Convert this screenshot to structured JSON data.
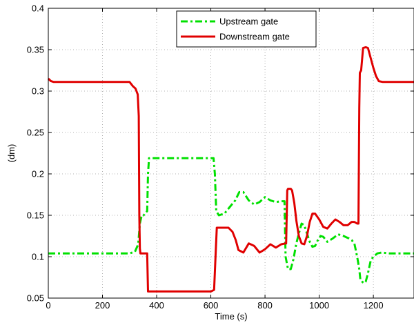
{
  "chart_data": {
    "type": "line",
    "xlabel": "Time (s)",
    "ylabel": "(dm)",
    "xlim": [
      0,
      1350
    ],
    "ylim": [
      0.05,
      0.4
    ],
    "xticks": [
      0,
      200,
      400,
      600,
      800,
      1000,
      1200
    ],
    "yticks": [
      0.05,
      0.1,
      0.15,
      0.2,
      0.25,
      0.3,
      0.35,
      0.4
    ],
    "xtick_labels": [
      "0",
      "200",
      "400",
      "600",
      "800",
      "1000",
      "1200"
    ],
    "ytick_labels": [
      "0.05",
      "0.1",
      "0.15",
      "0.2",
      "0.25",
      "0.3",
      "0.35",
      "0.4"
    ],
    "grid": true,
    "legend_position": "top-right",
    "series": [
      {
        "name": "Upstream gate",
        "color": "#00e000",
        "style": "dash-dot",
        "x": [
          0,
          10,
          20,
          40,
          100,
          200,
          300,
          320,
          332,
          338,
          345,
          352,
          355,
          365,
          368,
          372,
          380,
          450,
          550,
          610,
          615,
          620,
          630,
          650,
          670,
          690,
          705,
          720,
          740,
          760,
          780,
          800,
          820,
          840,
          860,
          872,
          876,
          880,
          885,
          895,
          905,
          915,
          925,
          935,
          945,
          955,
          965,
          975,
          985,
          995,
          1005,
          1015,
          1030,
          1050,
          1070,
          1090,
          1110,
          1120,
          1130,
          1140,
          1148,
          1152,
          1158,
          1165,
          1172,
          1180,
          1190,
          1200,
          1215,
          1230,
          1260,
          1300,
          1350
        ],
        "y": [
          0.104,
          0.104,
          0.104,
          0.104,
          0.104,
          0.104,
          0.104,
          0.106,
          0.115,
          0.14,
          0.15,
          0.15,
          0.152,
          0.155,
          0.2,
          0.219,
          0.219,
          0.219,
          0.219,
          0.219,
          0.2,
          0.155,
          0.15,
          0.152,
          0.16,
          0.168,
          0.178,
          0.178,
          0.168,
          0.163,
          0.166,
          0.172,
          0.168,
          0.166,
          0.167,
          0.167,
          0.1,
          0.093,
          0.085,
          0.085,
          0.097,
          0.115,
          0.128,
          0.14,
          0.138,
          0.128,
          0.118,
          0.112,
          0.113,
          0.12,
          0.125,
          0.124,
          0.118,
          0.122,
          0.127,
          0.125,
          0.122,
          0.12,
          0.116,
          0.1,
          0.085,
          0.072,
          0.07,
          0.068,
          0.07,
          0.08,
          0.095,
          0.1,
          0.104,
          0.105,
          0.104,
          0.104,
          0.104
        ]
      },
      {
        "name": "Downstream gate",
        "color": "#e00000",
        "style": "solid",
        "x": [
          0,
          10,
          20,
          40,
          60,
          100,
          200,
          300,
          312,
          322,
          330,
          334,
          336,
          338,
          340,
          345,
          360,
          365,
          368,
          372,
          400,
          500,
          600,
          612,
          618,
          622,
          630,
          650,
          665,
          680,
          692,
          702,
          720,
          740,
          760,
          780,
          800,
          820,
          840,
          860,
          875,
          878,
          882,
          885,
          895,
          900,
          908,
          916,
          925,
          935,
          945,
          955,
          965,
          975,
          985,
          1000,
          1015,
          1030,
          1045,
          1060,
          1075,
          1090,
          1105,
          1120,
          1130,
          1140,
          1145,
          1148,
          1150,
          1155,
          1162,
          1172,
          1180,
          1190,
          1200,
          1210,
          1220,
          1235,
          1260,
          1300,
          1350
        ],
        "y": [
          0.315,
          0.312,
          0.311,
          0.311,
          0.311,
          0.311,
          0.311,
          0.311,
          0.306,
          0.303,
          0.296,
          0.27,
          0.15,
          0.11,
          0.104,
          0.104,
          0.104,
          0.104,
          0.058,
          0.058,
          0.058,
          0.058,
          0.058,
          0.06,
          0.105,
          0.135,
          0.135,
          0.135,
          0.135,
          0.13,
          0.12,
          0.108,
          0.105,
          0.116,
          0.113,
          0.105,
          0.109,
          0.115,
          0.111,
          0.115,
          0.116,
          0.116,
          0.18,
          0.182,
          0.182,
          0.18,
          0.165,
          0.143,
          0.125,
          0.116,
          0.115,
          0.125,
          0.142,
          0.152,
          0.152,
          0.145,
          0.136,
          0.134,
          0.14,
          0.145,
          0.142,
          0.138,
          0.138,
          0.142,
          0.142,
          0.14,
          0.14,
          0.28,
          0.322,
          0.325,
          0.352,
          0.353,
          0.352,
          0.34,
          0.328,
          0.318,
          0.312,
          0.311,
          0.311,
          0.311,
          0.311
        ]
      }
    ]
  }
}
